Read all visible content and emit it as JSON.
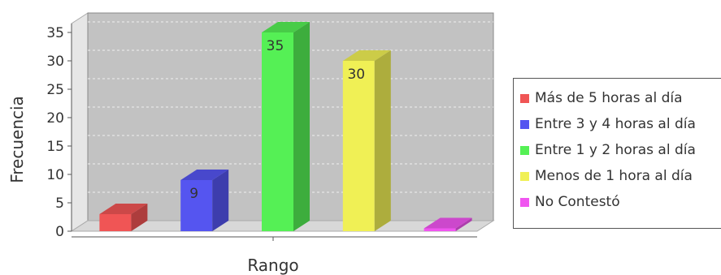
{
  "chart_data": {
    "type": "bar",
    "categories": [
      "Más de 5 horas al día",
      "Entre 3 y 4 horas al día",
      "Entre 1 y 2 horas al día",
      "Menos de 1 hora al día",
      "No Contestó"
    ],
    "values": [
      3,
      9,
      35,
      30,
      0.5
    ],
    "value_labels": [
      "",
      "9",
      "35",
      "30",
      ""
    ],
    "colors": [
      "#f05555",
      "#5555f0",
      "#55f055",
      "#f0f055",
      "#f055f0"
    ],
    "title": "",
    "xlabel": "Rango",
    "ylabel": "Frecuencia",
    "ylim": [
      0,
      38
    ],
    "yticks": [
      "0",
      "5",
      "10",
      "15",
      "20",
      "25",
      "30",
      "35"
    ],
    "grid": true,
    "style": "3d",
    "legend_position": "right"
  }
}
